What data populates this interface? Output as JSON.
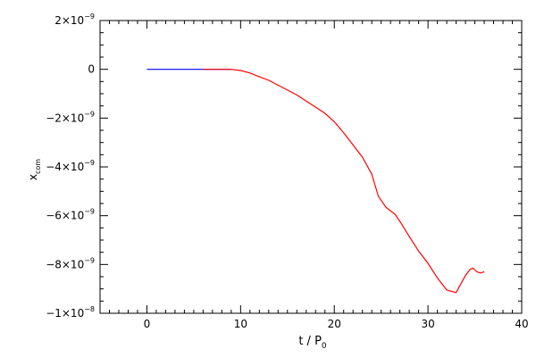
{
  "chart_data": {
    "type": "line",
    "title": "",
    "xlabel": {
      "main": "t / P",
      "sub": "0"
    },
    "ylabel": {
      "main": "x",
      "sub": "com"
    },
    "xlim": [
      -5,
      40
    ],
    "ylim": [
      -1e-08,
      2e-09
    ],
    "x_ticks": [
      0,
      10,
      20,
      30,
      40
    ],
    "y_ticks": [
      {
        "value": 2e-09,
        "mantissa": "2",
        "base": "×10",
        "exp": "−9"
      },
      {
        "value": 0,
        "plain": "0"
      },
      {
        "value": -2e-09,
        "mantissa": "−2",
        "base": "×10",
        "exp": "−9"
      },
      {
        "value": -4e-09,
        "mantissa": "−4",
        "base": "×10",
        "exp": "−9"
      },
      {
        "value": -6e-09,
        "mantissa": "−6",
        "base": "×10",
        "exp": "−9"
      },
      {
        "value": -8e-09,
        "mantissa": "−8",
        "base": "×10",
        "exp": "−9"
      },
      {
        "value": -1e-08,
        "mantissa": "−1",
        "base": "×10",
        "exp": "−8"
      }
    ],
    "grid": false,
    "series": [
      {
        "color": "#0000ff",
        "x": [
          0,
          6,
          9
        ],
        "y": [
          0,
          0,
          0
        ]
      },
      {
        "color": "#ff0000",
        "x": [
          6,
          7,
          9,
          10,
          11,
          12,
          13,
          14,
          15,
          16,
          17,
          18,
          19,
          20,
          21,
          22,
          23,
          24,
          24.7,
          25.5,
          26.5,
          27.2,
          28,
          29,
          30,
          31,
          32,
          33,
          33.5,
          34,
          34.5,
          34.8,
          35.2,
          35.6,
          36
        ],
        "y": [
          0,
          0,
          0,
          -5e-11,
          -1.5e-10,
          -3e-10,
          -4.5e-10,
          -6.5e-10,
          -8.5e-10,
          -1.05e-09,
          -1.3e-09,
          -1.55e-09,
          -1.8e-09,
          -2.15e-09,
          -2.6e-09,
          -3.1e-09,
          -3.6e-09,
          -4.3e-09,
          -5.2e-09,
          -5.65e-09,
          -5.95e-09,
          -6.35e-09,
          -6.85e-09,
          -7.45e-09,
          -7.95e-09,
          -8.55e-09,
          -9.05e-09,
          -9.15e-09,
          -8.8e-09,
          -8.45e-09,
          -8.2e-09,
          -8.15e-09,
          -8.3e-09,
          -8.35e-09,
          -8.3e-09
        ]
      }
    ]
  }
}
